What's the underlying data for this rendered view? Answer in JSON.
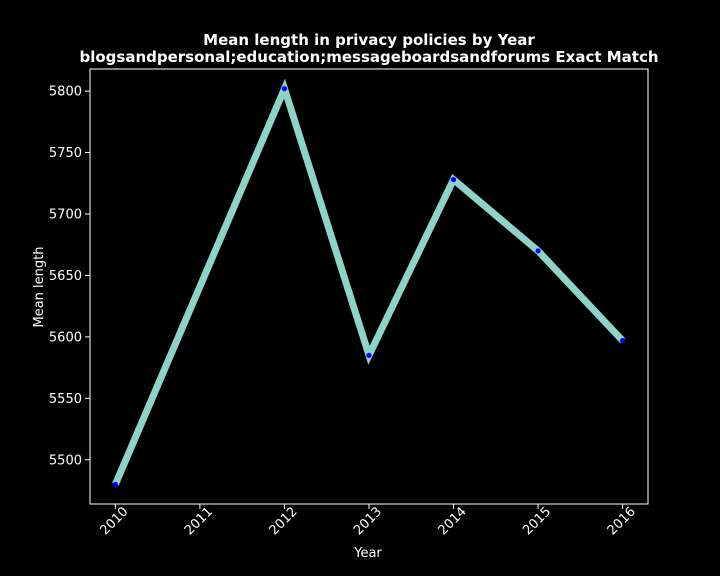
{
  "chart_data": {
    "type": "line",
    "title_line1": "Mean length in privacy policies by Year",
    "title_line2": "blogsandpersonal;education;messageboardsandforums Exact Match",
    "xlabel": "Year",
    "ylabel": "Mean length",
    "x": [
      2010,
      2012,
      2013,
      2014,
      2015,
      2016
    ],
    "x_ticks": [
      "2010",
      "2011",
      "2012",
      "2013",
      "2014",
      "2015",
      "2016"
    ],
    "x_range": [
      2009.7,
      2016.3
    ],
    "y": [
      5480,
      5802,
      5585,
      5728,
      5670,
      5597
    ],
    "y_ticks": [
      5500,
      5550,
      5600,
      5650,
      5700,
      5750,
      5800
    ],
    "ylim": [
      5464,
      5818
    ],
    "line_color": "#8dd3c7",
    "marker_color": "#0000ff",
    "background": "#000000",
    "grid": false,
    "legend": "none"
  }
}
